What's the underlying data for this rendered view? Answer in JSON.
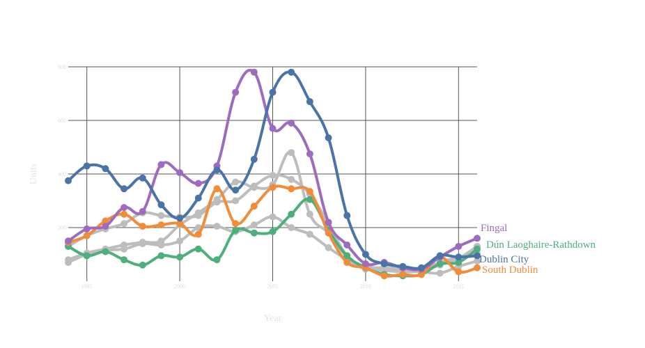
{
  "chart_data": {
    "type": "line",
    "title": "",
    "xlabel": "Year",
    "ylabel": "Units",
    "xlim": [
      1994,
      2016
    ],
    "ylim": [
      0,
      800
    ],
    "x_ticks": [
      "1995",
      "2000",
      "2005",
      "2010",
      "2015"
    ],
    "y_ticks": [
      "200",
      "400",
      "600",
      "800"
    ],
    "grid": true,
    "legend": "labels at line ends (right)",
    "x": [
      1994,
      1995,
      1996,
      1997,
      1998,
      1999,
      2000,
      2001,
      2002,
      2003,
      2004,
      2005,
      2006,
      2007,
      2008,
      2009,
      2010,
      2011,
      2012,
      2013,
      2014,
      2015,
      2016
    ],
    "series": [
      {
        "name": "",
        "color": "#bdbdbd",
        "values": [
          80,
          105,
          120,
          135,
          145,
          150,
          210,
          255,
          305,
          370,
          350,
          360,
          480,
          250,
          180,
          90,
          50,
          45,
          40,
          40,
          60,
          85,
          130
        ]
      },
      {
        "name": "",
        "color": "#bdbdbd",
        "values": [
          70,
          100,
          115,
          120,
          140,
          135,
          150,
          200,
          205,
          185,
          210,
          240,
          200,
          175,
          125,
          80,
          45,
          40,
          35,
          35,
          30,
          55,
          75
        ]
      },
      {
        "name": "",
        "color": "#bdbdbd",
        "values": [
          130,
          170,
          195,
          215,
          255,
          245,
          240,
          245,
          295,
          300,
          355,
          395,
          380,
          325,
          215,
          95,
          55,
          50,
          45,
          45,
          70,
          90,
          105
        ]
      },
      {
        "name": "Dún Laoghaire-Rathdown",
        "color": "#4daf7c",
        "values": [
          130,
          95,
          110,
          80,
          60,
          95,
          90,
          120,
          80,
          190,
          180,
          185,
          250,
          305,
          190,
          95,
          50,
          25,
          20,
          25,
          65,
          70,
          120
        ]
      },
      {
        "name": "South Dublin",
        "color": "#f08c3a",
        "values": [
          145,
          170,
          225,
          250,
          205,
          210,
          215,
          175,
          345,
          215,
          280,
          350,
          345,
          335,
          180,
          70,
          50,
          20,
          25,
          25,
          90,
          35,
          50
        ]
      },
      {
        "name": "Fingal",
        "color": "#9e6bbf",
        "values": [
          150,
          195,
          205,
          275,
          260,
          435,
          405,
          365,
          430,
          705,
          780,
          570,
          590,
          475,
          220,
          135,
          65,
          70,
          50,
          45,
          90,
          130,
          160
        ]
      },
      {
        "name": "Dublin City",
        "color": "#4a73a8",
        "values": [
          375,
          430,
          420,
          345,
          385,
          285,
          235,
          310,
          415,
          340,
          455,
          705,
          780,
          670,
          535,
          245,
          100,
          65,
          55,
          50,
          95,
          90,
          95
        ]
      }
    ],
    "annotations": [
      "Fingal",
      "Dún Laoghaire-Rathdown",
      "Dublin City",
      "South Dublin"
    ]
  }
}
